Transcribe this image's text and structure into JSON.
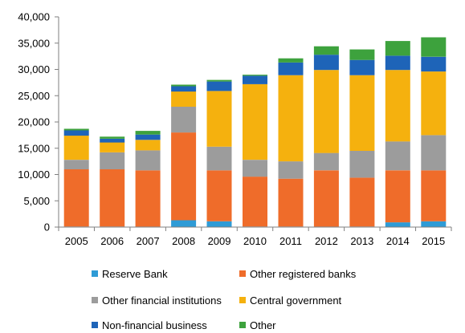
{
  "chart_data": {
    "type": "bar",
    "stacked": true,
    "title": "",
    "xlabel": "",
    "ylabel": "",
    "ylim": [
      0,
      40000
    ],
    "yticks": [
      "0",
      "5,000",
      "10,000",
      "15,000",
      "20,000",
      "25,000",
      "30,000",
      "35,000",
      "40,000"
    ],
    "ytick_values": [
      0,
      5000,
      10000,
      15000,
      20000,
      25000,
      30000,
      35000,
      40000
    ],
    "grid": false,
    "legend_position": "bottom",
    "categories": [
      "2005",
      "2006",
      "2007",
      "2008",
      "2009",
      "2010",
      "2011",
      "2012",
      "2013",
      "2014",
      "2015"
    ],
    "series": [
      {
        "name": "Reserve Bank",
        "color": "#2e9bd6",
        "values": [
          100,
          100,
          100,
          1300,
          1100,
          100,
          100,
          100,
          100,
          900,
          1100
        ]
      },
      {
        "name": "Other registered banks",
        "color": "#ef6c2a",
        "values": [
          10900,
          10900,
          10700,
          16700,
          9700,
          9500,
          9100,
          10700,
          9300,
          9900,
          9700
        ]
      },
      {
        "name": "Other financial institutions",
        "color": "#9c9c9c",
        "values": [
          1800,
          3200,
          3800,
          4900,
          4500,
          3200,
          3300,
          3300,
          5100,
          5500,
          6700
        ]
      },
      {
        "name": "Central government",
        "color": "#f5b10e",
        "values": [
          4600,
          1900,
          2000,
          2900,
          10600,
          14400,
          16400,
          15800,
          14400,
          13600,
          12100
        ]
      },
      {
        "name": "Non-financial business",
        "color": "#1e64b8",
        "values": [
          1000,
          700,
          1000,
          1000,
          1800,
          1600,
          2400,
          2900,
          2900,
          2700,
          2800
        ]
      },
      {
        "name": "Other",
        "color": "#3da23d",
        "values": [
          300,
          400,
          700,
          300,
          300,
          200,
          800,
          1600,
          2000,
          2800,
          3700
        ]
      }
    ]
  }
}
